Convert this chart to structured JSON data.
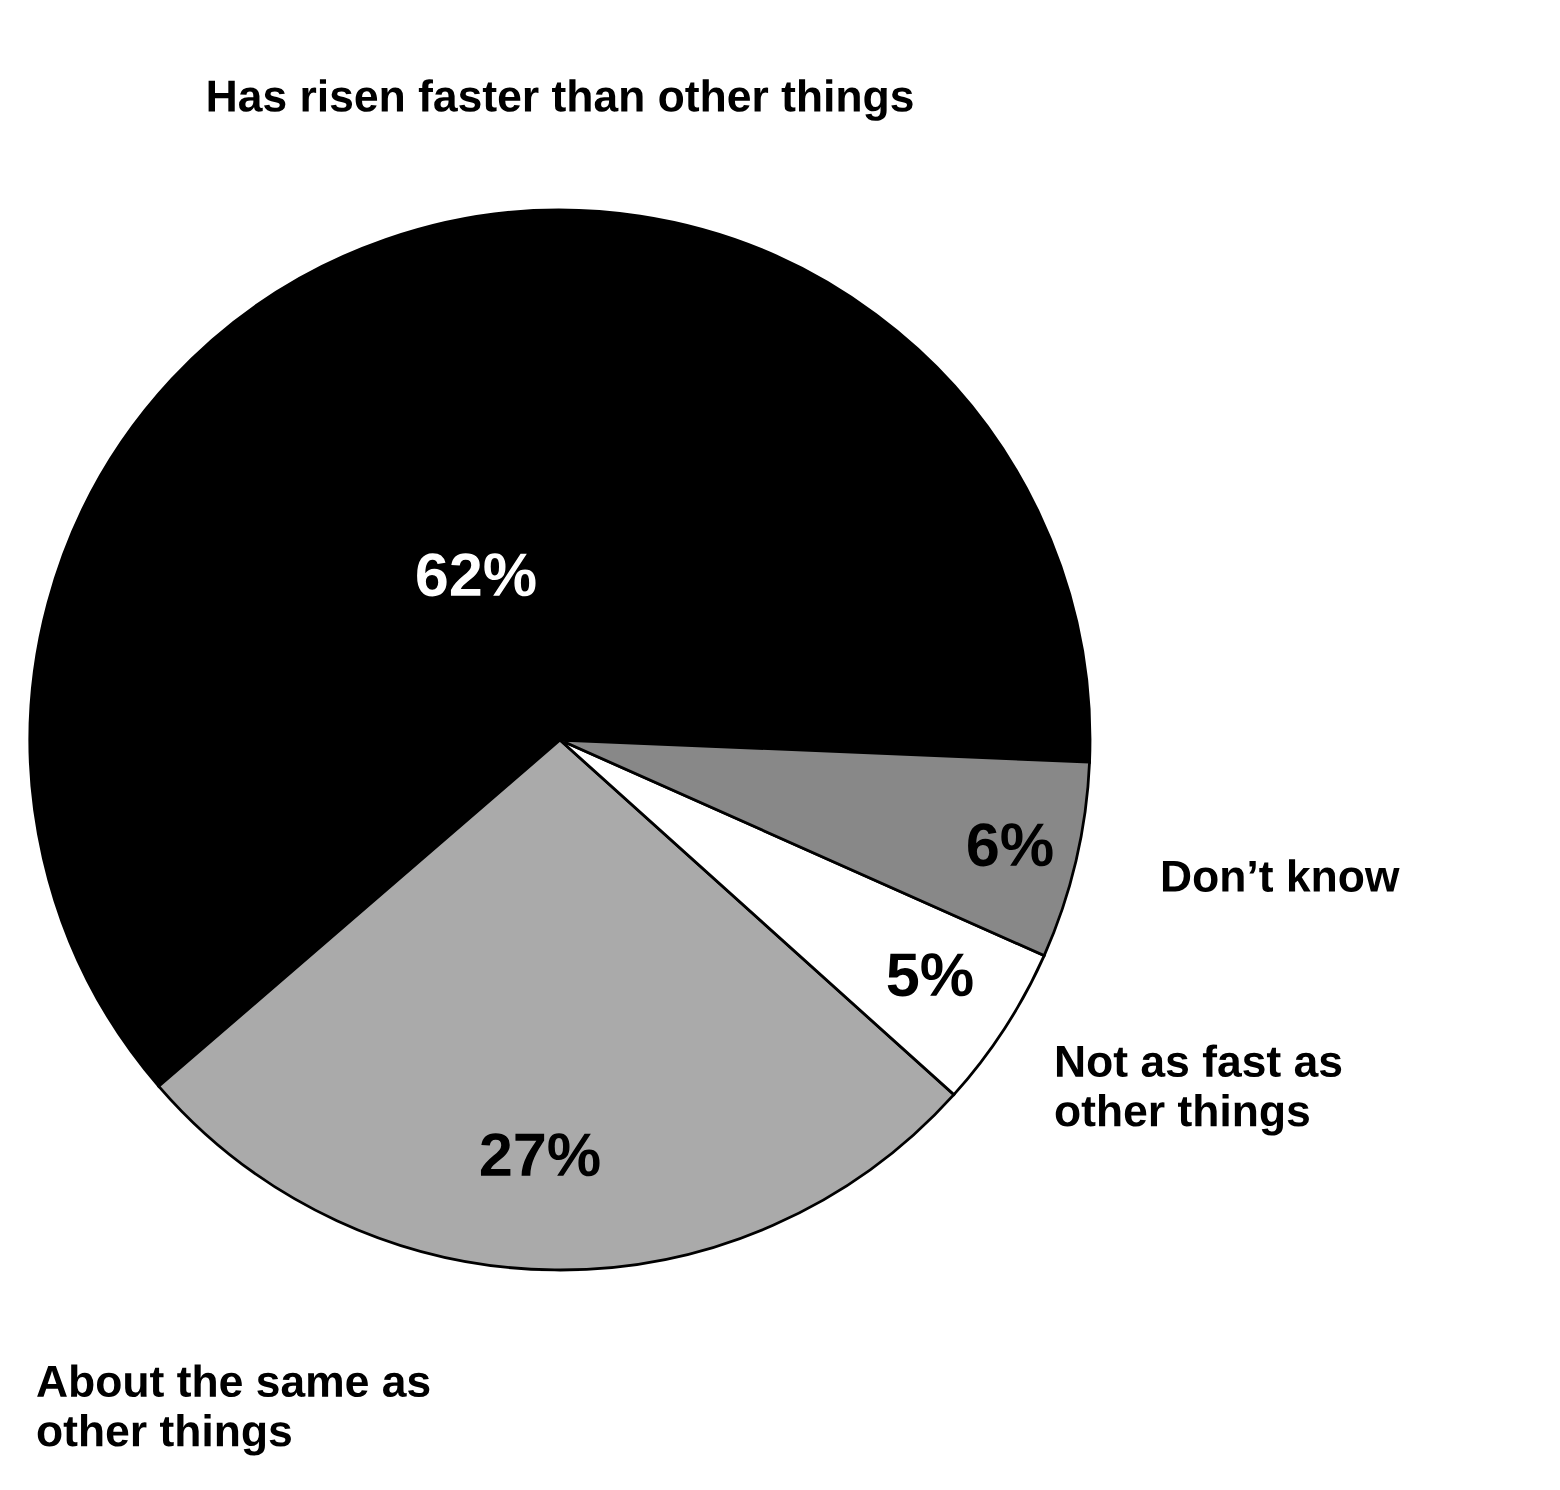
{
  "chart_data": {
    "type": "pie",
    "categories": [
      "Has risen faster than other things",
      "About the same as\nother things",
      "Not as fast as\nother things",
      "Don’t know"
    ],
    "values": [
      62,
      27,
      5,
      6
    ],
    "colors": [
      "#000000",
      "#aaaaaa",
      "#ffffff",
      "#888888"
    ],
    "value_labels": [
      "62%",
      "27%",
      "5%",
      "6%"
    ]
  }
}
